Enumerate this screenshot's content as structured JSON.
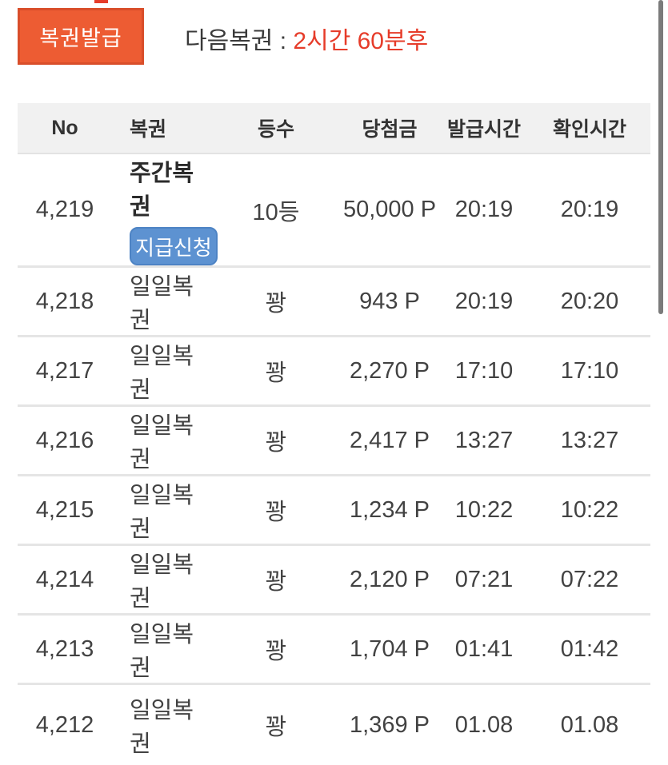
{
  "theme": {
    "accent_orange": "#ed5c33",
    "accent_orange_border": "#d94e2a",
    "accent_red": "#e63c2a",
    "accent_blue": "#5d92d1",
    "header_bg": "#f1f1f1",
    "divider": "#e5e5e5",
    "scrollbar": "#7b7b7b"
  },
  "topbar": {
    "issue_button_label": "복권발급",
    "next_lottery_label": "다음복권 : ",
    "next_lottery_time": "2시간 60분후"
  },
  "table": {
    "columns": [
      "No",
      "복권",
      "등수",
      "당첨금",
      "발급시간",
      "확인시간"
    ],
    "rows": [
      {
        "no": "4,219",
        "lottery": "주간복권",
        "action": "지급신청",
        "rank": "10등",
        "prize": "50,000 P",
        "issued": "20:19",
        "checked": "20:19",
        "highlight": true
      },
      {
        "no": "4,218",
        "lottery": "일일복권",
        "rank": "꽝",
        "prize": "943 P",
        "issued": "20:19",
        "checked": "20:20"
      },
      {
        "no": "4,217",
        "lottery": "일일복권",
        "rank": "꽝",
        "prize": "2,270 P",
        "issued": "17:10",
        "checked": "17:10"
      },
      {
        "no": "4,216",
        "lottery": "일일복권",
        "rank": "꽝",
        "prize": "2,417 P",
        "issued": "13:27",
        "checked": "13:27"
      },
      {
        "no": "4,215",
        "lottery": "일일복권",
        "rank": "꽝",
        "prize": "1,234 P",
        "issued": "10:22",
        "checked": "10:22"
      },
      {
        "no": "4,214",
        "lottery": "일일복권",
        "rank": "꽝",
        "prize": "2,120 P",
        "issued": "07:21",
        "checked": "07:22"
      },
      {
        "no": "4,213",
        "lottery": "일일복권",
        "rank": "꽝",
        "prize": "1,704 P",
        "issued": "01:41",
        "checked": "01:42"
      },
      {
        "no": "4,212",
        "lottery": "일일복권",
        "rank": "꽝",
        "prize": "1,369 P",
        "issued": "01.08",
        "checked": "01.08"
      }
    ]
  }
}
